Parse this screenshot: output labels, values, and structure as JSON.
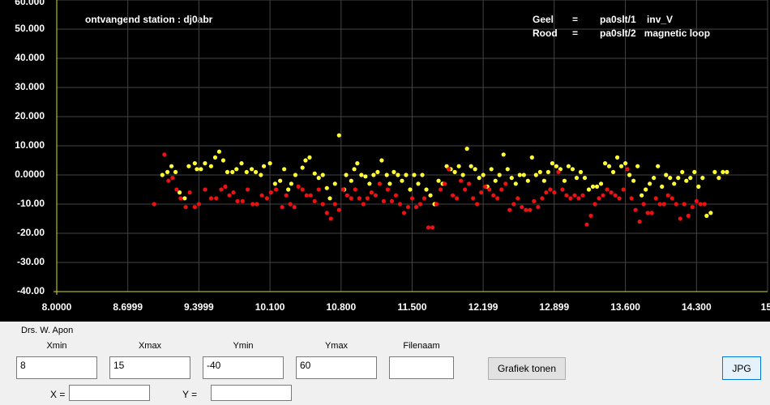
{
  "chart_data": {
    "type": "scatter",
    "annotation": "ontvangend station :  dj0abr",
    "legend_separator": "=",
    "xlim": [
      8,
      15
    ],
    "xticks": [
      {
        "value": 8,
        "label": "8.0000"
      },
      8.6999,
      9.3999,
      {
        "value": 10.1,
        "label": "10.100"
      },
      {
        "value": 10.8,
        "label": "10.800"
      },
      {
        "value": 11.5,
        "label": "11.500"
      },
      12.199,
      12.899,
      {
        "value": 13.6,
        "label": "13.600"
      },
      {
        "value": 14.3,
        "label": "14.300"
      },
      {
        "value": 15,
        "label": "15."
      }
    ],
    "ylim": [
      -40,
      60
    ],
    "yticks": [
      {
        "value": 60,
        "label": "60.000"
      },
      {
        "value": 50,
        "label": "50.000"
      },
      {
        "value": 40,
        "label": "40.000"
      },
      {
        "value": 30,
        "label": "30.000"
      },
      {
        "value": 20,
        "label": "20.000"
      },
      {
        "value": 10,
        "label": "10.000"
      },
      {
        "value": 0,
        "label": "0.0000"
      },
      {
        "value": -10,
        "label": "-10.00"
      },
      {
        "value": -20,
        "label": "-20.00"
      },
      {
        "value": -30,
        "label": "-30.00"
      },
      {
        "value": -40,
        "label": "-40.00"
      }
    ],
    "grid": true,
    "series": [
      {
        "color_label": "Geel",
        "name": "pa0slt/1    inv_V",
        "color": "#ffff33",
        "x": [
          9.04,
          9.09,
          9.13,
          9.17,
          9.21,
          9.26,
          9.3,
          9.36,
          9.38,
          9.42,
          9.46,
          9.52,
          9.56,
          9.6,
          9.64,
          9.68,
          9.73,
          9.77,
          9.82,
          9.87,
          9.92,
          9.96,
          10.01,
          10.04,
          10.1,
          10.15,
          10.2,
          10.24,
          10.28,
          10.31,
          10.35,
          10.42,
          10.45,
          10.49,
          10.54,
          10.58,
          10.62,
          10.66,
          10.69,
          10.74,
          10.78,
          10.83,
          10.85,
          10.9,
          10.93,
          10.96,
          11.0,
          11.04,
          11.08,
          11.12,
          11.16,
          11.2,
          11.25,
          11.28,
          11.32,
          11.36,
          11.4,
          11.44,
          11.48,
          11.52,
          11.56,
          11.6,
          11.64,
          11.68,
          11.72,
          11.76,
          11.8,
          11.84,
          11.88,
          11.92,
          11.96,
          12.0,
          12.04,
          12.08,
          12.12,
          12.16,
          12.2,
          12.24,
          12.28,
          12.32,
          12.36,
          12.4,
          12.44,
          12.48,
          12.52,
          12.56,
          12.6,
          12.64,
          12.68,
          12.72,
          12.76,
          12.8,
          12.84,
          12.88,
          12.92,
          12.96,
          13.0,
          13.04,
          13.08,
          13.12,
          13.16,
          13.2,
          13.24,
          13.28,
          13.32,
          13.36,
          13.4,
          13.44,
          13.48,
          13.52,
          13.56,
          13.6,
          13.64,
          13.68,
          13.72,
          13.76,
          13.8,
          13.84,
          13.88,
          13.92,
          13.96,
          14.0,
          14.04,
          14.08,
          14.12,
          14.16,
          14.2,
          14.24,
          14.28,
          14.32,
          14.36,
          14.4,
          14.44,
          14.48,
          14.52,
          14.56,
          14.6
        ],
        "values": [
          0,
          1,
          3,
          1,
          -6,
          -8,
          3,
          4,
          2,
          2,
          4,
          3,
          6,
          8,
          5,
          1,
          1,
          2,
          4,
          1,
          2,
          1,
          0,
          3,
          4,
          -3,
          -2,
          2,
          -5,
          -3,
          0,
          2.5,
          5,
          6,
          0.5,
          -1,
          0,
          -4.5,
          -8,
          -3,
          13.6,
          -5,
          0,
          -2,
          2,
          4,
          0,
          -0.5,
          -3,
          0,
          1,
          5,
          0,
          -3,
          1,
          0,
          -2,
          0,
          -5,
          0,
          -3,
          0,
          -5,
          -7,
          -10,
          -2,
          -3,
          3,
          2,
          1,
          3,
          0,
          9,
          3,
          2,
          -1,
          0,
          -4,
          2,
          -2,
          0,
          7,
          2,
          -1,
          -3,
          0,
          0,
          -2,
          6,
          0,
          1,
          -2,
          1,
          4,
          3,
          2,
          -2,
          3,
          2,
          -1,
          1,
          -1,
          -5,
          -4,
          -4,
          -3,
          4,
          3,
          1,
          6,
          3,
          4,
          0,
          -2,
          3,
          -7,
          -5,
          -3,
          -1,
          3,
          -4,
          0,
          -1,
          -3,
          -1,
          1,
          -2,
          -1,
          1,
          -4,
          -1,
          -14,
          -13,
          1,
          -1,
          1,
          1
        ]
      },
      {
        "color_label": "Rood",
        "name": "pa0slt/2   magnetic loop",
        "color": "#ee1111",
        "x": [
          8.96,
          9.06,
          9.1,
          9.14,
          9.18,
          9.22,
          9.27,
          9.31,
          9.36,
          9.4,
          9.46,
          9.52,
          9.57,
          9.62,
          9.66,
          9.7,
          9.74,
          9.78,
          9.83,
          9.88,
          9.93,
          9.97,
          10.02,
          10.07,
          10.11,
          10.16,
          10.22,
          10.26,
          10.3,
          10.34,
          10.38,
          10.42,
          10.46,
          10.5,
          10.54,
          10.58,
          10.62,
          10.66,
          10.7,
          10.74,
          10.78,
          10.82,
          10.86,
          10.9,
          10.94,
          10.98,
          11.02,
          11.06,
          11.1,
          11.14,
          11.18,
          11.22,
          11.26,
          11.3,
          11.34,
          11.38,
          11.42,
          11.46,
          11.5,
          11.54,
          11.58,
          11.62,
          11.66,
          11.7,
          11.74,
          11.78,
          11.82,
          11.86,
          11.9,
          11.94,
          11.98,
          12.02,
          12.06,
          12.1,
          12.14,
          12.18,
          12.22,
          12.26,
          12.3,
          12.34,
          12.38,
          12.42,
          12.46,
          12.5,
          12.54,
          12.58,
          12.62,
          12.66,
          12.7,
          12.74,
          12.78,
          12.82,
          12.86,
          12.9,
          12.94,
          12.98,
          13.02,
          13.06,
          13.1,
          13.14,
          13.18,
          13.22,
          13.26,
          13.3,
          13.34,
          13.38,
          13.42,
          13.46,
          13.5,
          13.54,
          13.58,
          13.62,
          13.66,
          13.7,
          13.74,
          13.78,
          13.82,
          13.86,
          13.9,
          13.94,
          13.98,
          14.02,
          14.06,
          14.1,
          14.14,
          14.18,
          14.22,
          14.26,
          14.3,
          14.34,
          14.38
        ],
        "values": [
          -10,
          7,
          -2,
          -1,
          -5,
          -8,
          -11,
          -6,
          -11,
          -10,
          -5,
          -8,
          -8,
          -5,
          -4,
          -7,
          -6,
          -9,
          -9,
          -5,
          -10,
          -10,
          -7,
          -8,
          -6,
          -5,
          -11,
          -7,
          -10,
          -11,
          -4,
          -5,
          -7,
          -7,
          -9,
          -5,
          -10,
          -13,
          -15,
          -10,
          -12,
          -5,
          -7,
          -8,
          -5,
          -8,
          -10,
          -8,
          -6,
          -7,
          -3,
          -9,
          -5,
          -9,
          -7,
          -10,
          -13,
          -11,
          -8,
          -11,
          -10,
          -8,
          -18,
          -18,
          -10,
          -5,
          -3,
          2,
          -7,
          -8,
          -2,
          -5,
          -3,
          -8,
          -10,
          -6,
          -4,
          -5,
          -7,
          -8,
          -5,
          -3,
          -12,
          -10,
          -8,
          -11,
          -12,
          -12,
          -9,
          -11,
          -8,
          -6,
          -5,
          -6,
          1,
          -5,
          -7,
          -8,
          -7,
          -8,
          -7,
          -17,
          -14,
          -10,
          -8,
          -7,
          -5,
          -6,
          -7,
          -8,
          -5,
          2,
          -8,
          -12,
          -16,
          -10,
          -13,
          -13,
          -8,
          -10,
          -10,
          -7,
          -8,
          -10,
          -15,
          -10,
          -14,
          -11,
          -9,
          -10,
          -10
        ]
      }
    ]
  },
  "form": {
    "author": "Drs. W. Apon",
    "fields": [
      {
        "label": "Xmin",
        "value": "8"
      },
      {
        "label": "Xmax",
        "value": "15"
      },
      {
        "label": "Ymin",
        "value": "-40"
      },
      {
        "label": "Ymax",
        "value": "60"
      },
      {
        "label": "Filenaam"
      }
    ],
    "show_button": "Grafiek tonen",
    "jpg_button": "JPG",
    "x_label": "X =",
    "y_label": "Y ="
  }
}
